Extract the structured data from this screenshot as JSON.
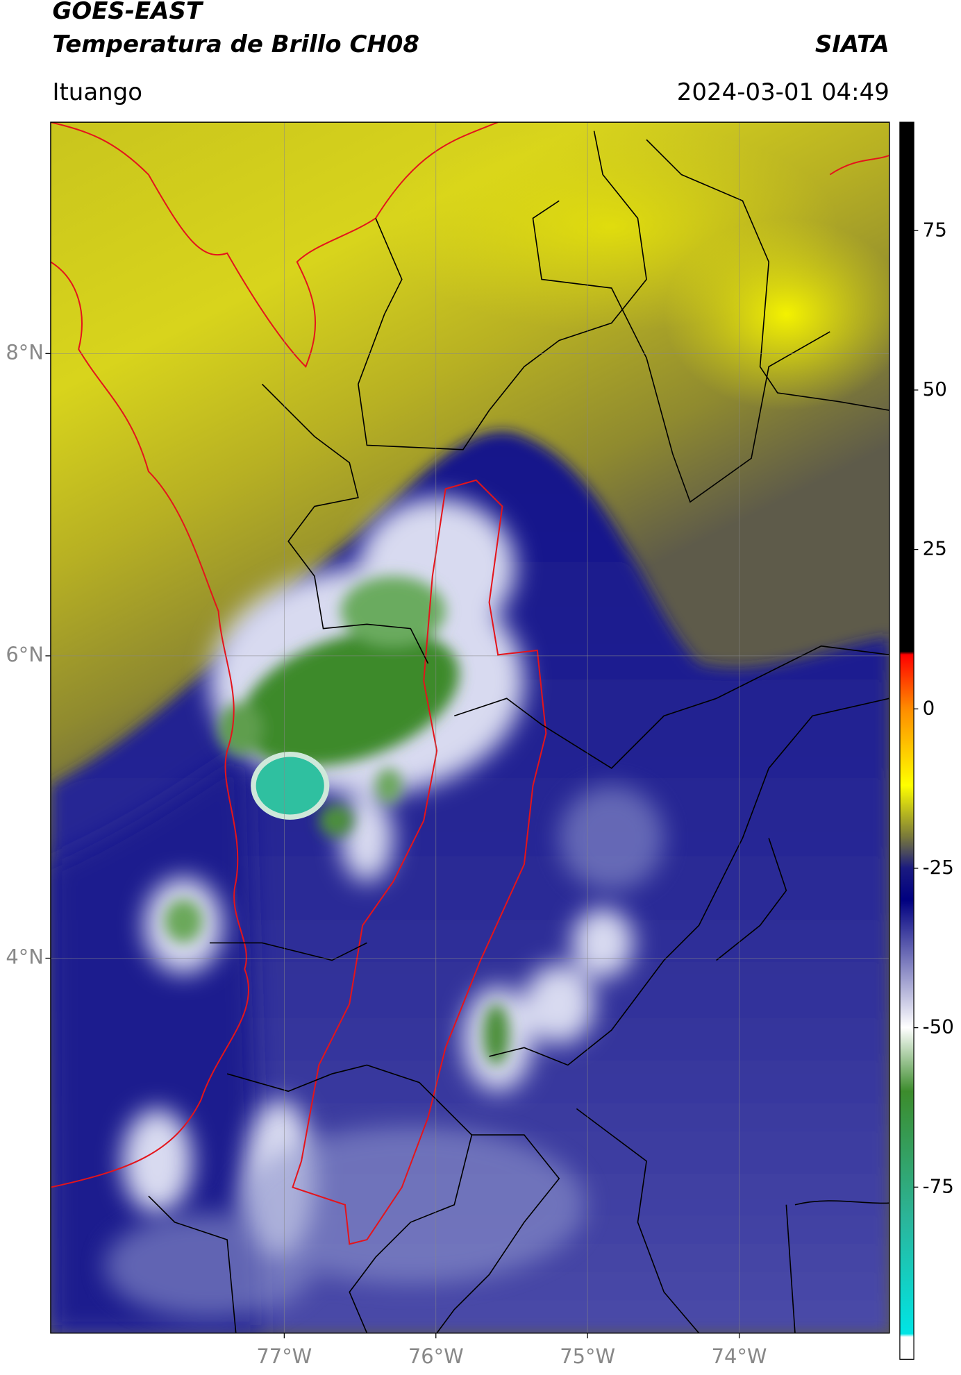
{
  "header": {
    "title": "GOES-EAST",
    "subtitle": "Temperatura de Brillo CH08",
    "source": "SIATA",
    "region": "Ituango",
    "datetime": "2024-03-01 04:49"
  },
  "map": {
    "xlim": [
      -78.54,
      -73.01
    ],
    "ylim": [
      1.52,
      9.53
    ],
    "xticks": [
      {
        "value": -77,
        "label": "77°W"
      },
      {
        "value": -76,
        "label": "76°W"
      },
      {
        "value": -75,
        "label": "75°W"
      },
      {
        "value": -74,
        "label": "74°W"
      }
    ],
    "yticks": [
      {
        "value": 4,
        "label": "4°N"
      },
      {
        "value": 6,
        "label": "6°N"
      },
      {
        "value": 8,
        "label": "8°N"
      }
    ],
    "grid": true
  },
  "colorbar": {
    "lim": [
      -102,
      92
    ],
    "ticks": [
      75,
      50,
      25,
      0,
      -25,
      -50,
      -75
    ],
    "colormap": [
      {
        "value": 92,
        "color": "#000000"
      },
      {
        "value": 9,
        "color": "#000000"
      },
      {
        "value": 8.5,
        "color": "#ff0000"
      },
      {
        "value": 0,
        "color": "#ff8c00"
      },
      {
        "value": -12,
        "color": "#ffff00"
      },
      {
        "value": -20,
        "color": "#7a7a3a"
      },
      {
        "value": -25,
        "color": "#1a1a80"
      },
      {
        "value": -30,
        "color": "#000080"
      },
      {
        "value": -50,
        "color": "#ffffff"
      },
      {
        "value": -60,
        "color": "#3c8c2c"
      },
      {
        "value": -80,
        "color": "#2bb59a"
      },
      {
        "value": -98,
        "color": "#00e5e5"
      },
      {
        "value": -98.5,
        "color": "#ffffff"
      },
      {
        "value": -102,
        "color": "#ffffff"
      }
    ]
  }
}
